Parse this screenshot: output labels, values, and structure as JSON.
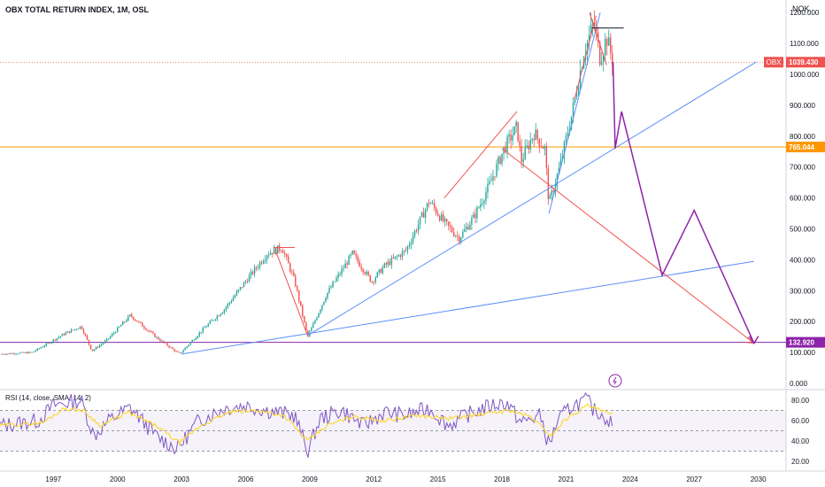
{
  "header": {
    "title": "OBX TOTAL RETURN INDEX, 1M, OSL",
    "currency": "NOK"
  },
  "price_axis": {
    "ticks": [
      "1200.000",
      "1100.000",
      "1000.000",
      "900.000",
      "800.000",
      "700.000",
      "600.000",
      "500.000",
      "400.000",
      "300.000",
      "200.000",
      "100.000",
      "0.000"
    ]
  },
  "time_axis": {
    "ticks": [
      "1997",
      "2000",
      "2003",
      "2006",
      "2009",
      "2012",
      "2015",
      "2018",
      "2021",
      "2024",
      "2027",
      "2030"
    ]
  },
  "badges": {
    "last_symbol": "OBX",
    "last_price": "1039.430",
    "support_level": "765.044",
    "target_level": "132.920"
  },
  "rsi": {
    "label": "RSI (14, close, SMA, 14, 2)",
    "ticks": [
      "80.00",
      "60.00",
      "40.00",
      "20.00"
    ]
  },
  "colors": {
    "up": "#26a69a",
    "down": "#ef5350",
    "trend": "#5b8ff9",
    "projection": "#8e24aa",
    "support": "#ff9800",
    "rsi_line": "#7e57c2",
    "rsi_ma": "#fdd835"
  },
  "chart_data": [
    {
      "type": "candlestick",
      "title": "OBX TOTAL RETURN INDEX, 1M, OSL",
      "ylabel": "NOK",
      "ylim": [
        0,
        1250
      ],
      "xlim": [
        1994.5,
        2031.3
      ],
      "anchors": [
        [
          1994.5,
          95
        ],
        [
          1996,
          100
        ],
        [
          1997.5,
          160
        ],
        [
          1998.3,
          185
        ],
        [
          1998.8,
          105
        ],
        [
          1999.5,
          140
        ],
        [
          2000.6,
          220
        ],
        [
          2001.8,
          150
        ],
        [
          2002.9,
          95
        ],
        [
          2004,
          175
        ],
        [
          2005,
          240
        ],
        [
          2006,
          330
        ],
        [
          2007,
          420
        ],
        [
          2007.7,
          440
        ],
        [
          2008.3,
          330
        ],
        [
          2008.9,
          150
        ],
        [
          2009.8,
          290
        ],
        [
          2011,
          420
        ],
        [
          2011.9,
          330
        ],
        [
          2012.5,
          380
        ],
        [
          2013.5,
          430
        ],
        [
          2014.6,
          590
        ],
        [
          2015.3,
          520
        ],
        [
          2016,
          470
        ],
        [
          2016.7,
          540
        ],
        [
          2017.4,
          640
        ],
        [
          2018.1,
          760
        ],
        [
          2018.7,
          830
        ],
        [
          2018.9,
          720
        ],
        [
          2019.5,
          810
        ],
        [
          2020,
          760
        ],
        [
          2020.2,
          580
        ],
        [
          2020.7,
          700
        ],
        [
          2021.3,
          880
        ],
        [
          2021.8,
          1060
        ],
        [
          2022.3,
          1170
        ],
        [
          2022.6,
          1050
        ],
        [
          2022.9,
          1120
        ],
        [
          2023.2,
          1039
        ]
      ],
      "last_price": 1039.43,
      "levels": {
        "support": 765.044,
        "target": 132.92
      },
      "trendlines": [
        {
          "color": "trend",
          "points": [
            [
              2003,
              95
            ],
            [
              2029.8,
              395
            ]
          ]
        },
        {
          "color": "trend",
          "points": [
            [
              2008.9,
              155
            ],
            [
              2029.9,
              1040
            ]
          ]
        },
        {
          "color": "trend",
          "points": [
            [
              2020.2,
              550
            ],
            [
              2022.6,
              1200
            ]
          ]
        },
        {
          "color": "down",
          "points": [
            [
              2015.3,
              600
            ],
            [
              2018.7,
              880
            ]
          ]
        },
        {
          "color": "down",
          "points": [
            [
              2018,
              760
            ],
            [
              2029.8,
              130
            ]
          ]
        },
        {
          "color": "down",
          "points": [
            [
              2021.4,
              920
            ],
            [
              2022.4,
              1190
            ]
          ]
        },
        {
          "color": "down",
          "points": [
            [
              2022.1,
              1200
            ],
            [
              2022.9,
              1030
            ]
          ]
        },
        {
          "color": "down",
          "points": [
            [
              2007.3,
              440
            ],
            [
              2008.3,
              440
            ]
          ]
        },
        {
          "color": "down",
          "points": [
            [
              2007.4,
              430
            ],
            [
              2008.9,
              155
            ]
          ]
        }
      ],
      "projection": [
        [
          2023.2,
          1039
        ],
        [
          2023.3,
          760
        ],
        [
          2023.6,
          880
        ],
        [
          2025.5,
          350
        ],
        [
          2027,
          560
        ],
        [
          2029.8,
          130
        ]
      ],
      "annotation": "lightning"
    },
    {
      "type": "line",
      "title": "RSI (14, close, SMA, 14, 2)",
      "ylim": [
        20,
        90
      ],
      "bands": [
        30,
        50,
        70
      ],
      "series": [
        {
          "color": "rsi_line",
          "anchors": [
            [
              1994.5,
              55
            ],
            [
              1996.3,
              60
            ],
            [
              1997,
              75
            ],
            [
              1998.3,
              80
            ],
            [
              1998.9,
              45
            ],
            [
              1999.6,
              60
            ],
            [
              2000.6,
              73
            ],
            [
              2001.8,
              45
            ],
            [
              2002.8,
              32
            ],
            [
              2003.8,
              60
            ],
            [
              2005,
              72
            ],
            [
              2006,
              75
            ],
            [
              2007,
              70
            ],
            [
              2008.3,
              65
            ],
            [
              2008.9,
              30
            ],
            [
              2009.5,
              62
            ],
            [
              2010.5,
              70
            ],
            [
              2011.5,
              55
            ],
            [
              2012.5,
              68
            ],
            [
              2013.5,
              65
            ],
            [
              2014.6,
              72
            ],
            [
              2015.5,
              55
            ],
            [
              2016.3,
              65
            ],
            [
              2017.5,
              75
            ],
            [
              2018.2,
              78
            ],
            [
              2018.9,
              58
            ],
            [
              2019.8,
              65
            ],
            [
              2020.2,
              35
            ],
            [
              2020.6,
              60
            ],
            [
              2021.3,
              75
            ],
            [
              2022,
              80
            ],
            [
              2022.3,
              70
            ],
            [
              2022.8,
              65
            ],
            [
              2023.2,
              55
            ]
          ]
        },
        {
          "color": "rsi_ma",
          "anchors": [
            [
              1994.5,
              55
            ],
            [
              1996.5,
              58
            ],
            [
              1997.5,
              72
            ],
            [
              1998.4,
              70
            ],
            [
              1999.2,
              55
            ],
            [
              2000.5,
              68
            ],
            [
              2001.8,
              55
            ],
            [
              2002.9,
              38
            ],
            [
              2003.9,
              55
            ],
            [
              2005.2,
              68
            ],
            [
              2006.5,
              70
            ],
            [
              2007.8,
              65
            ],
            [
              2008.9,
              40
            ],
            [
              2009.8,
              55
            ],
            [
              2011,
              64
            ],
            [
              2012.5,
              60
            ],
            [
              2014,
              65
            ],
            [
              2015.5,
              62
            ],
            [
              2017,
              66
            ],
            [
              2018.4,
              70
            ],
            [
              2019.4,
              63
            ],
            [
              2020.3,
              45
            ],
            [
              2021,
              62
            ],
            [
              2022,
              75
            ],
            [
              2023.2,
              65
            ]
          ]
        }
      ]
    }
  ]
}
